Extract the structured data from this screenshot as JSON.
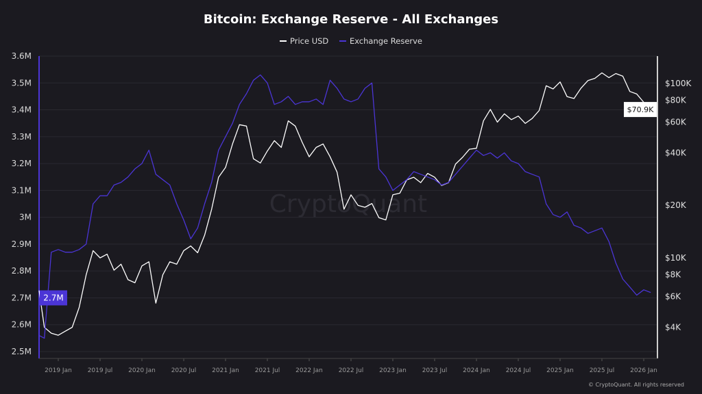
{
  "chart_data": {
    "type": "line",
    "title": "Bitcoin: Exchange Reserve - All Exchanges",
    "legend_position": "top",
    "grid": true,
    "watermark": "CryptoQuant",
    "copyright": "© CryptoQuant. All rights reserved",
    "x_ticks": [
      "2019 Jan",
      "2019 Jul",
      "2020 Jan",
      "2020 Jul",
      "2021 Jan",
      "2021 Jul",
      "2022 Jan",
      "2022 Jul",
      "2023 Jan",
      "2023 Jul",
      "2024 Jan",
      "2024 Jul",
      "2025 Jan",
      "2025 Jul",
      "2026 Jan"
    ],
    "left_axis": {
      "ticks": [
        "3.6M",
        "3.5M",
        "3.4M",
        "3.3M",
        "3.2M",
        "3.1M",
        "3M",
        "2.9M",
        "2.8M",
        "2.7M",
        "2.6M",
        "2.5M"
      ],
      "range_m": [
        2.5,
        3.6
      ],
      "current_label": "2.7M"
    },
    "right_axis": {
      "scale": "log",
      "ticks": [
        "$100K",
        "$80K",
        "$60K",
        "$40K",
        "$20K",
        "$10K",
        "$8K",
        "$6K",
        "$4K"
      ],
      "tick_values": [
        100000,
        80000,
        60000,
        40000,
        20000,
        10000,
        8000,
        6000,
        4000
      ],
      "current_label": "$70.9K"
    },
    "x": [
      "2018-10",
      "2018-11",
      "2018-12",
      "2019-01",
      "2019-02",
      "2019-03",
      "2019-04",
      "2019-05",
      "2019-06",
      "2019-07",
      "2019-08",
      "2019-09",
      "2019-10",
      "2019-11",
      "2019-12",
      "2020-01",
      "2020-02",
      "2020-03",
      "2020-04",
      "2020-05",
      "2020-06",
      "2020-07",
      "2020-08",
      "2020-09",
      "2020-10",
      "2020-11",
      "2020-12",
      "2021-01",
      "2021-02",
      "2021-03",
      "2021-04",
      "2021-05",
      "2021-06",
      "2021-07",
      "2021-08",
      "2021-09",
      "2021-10",
      "2021-11",
      "2021-12",
      "2022-01",
      "2022-02",
      "2022-03",
      "2022-04",
      "2022-05",
      "2022-06",
      "2022-07",
      "2022-08",
      "2022-09",
      "2022-10",
      "2022-11",
      "2022-12",
      "2023-01",
      "2023-02",
      "2023-03",
      "2023-04",
      "2023-05",
      "2023-06",
      "2023-07",
      "2023-08",
      "2023-09",
      "2023-10",
      "2023-11",
      "2023-12",
      "2024-01",
      "2024-02",
      "2024-03",
      "2024-04",
      "2024-05",
      "2024-06",
      "2024-07",
      "2024-08",
      "2024-09",
      "2024-10",
      "2024-11",
      "2024-12",
      "2025-01",
      "2025-02",
      "2025-03",
      "2025-04",
      "2025-05",
      "2025-06",
      "2025-07",
      "2025-08",
      "2025-09",
      "2025-10",
      "2025-11",
      "2025-12",
      "2026-01",
      "2026-02"
    ],
    "series": [
      {
        "name": "Price USD",
        "axis": "right",
        "color": "#ffffff",
        "values": [
          6500,
          4000,
          3700,
          3600,
          3800,
          4000,
          5200,
          8000,
          11000,
          10000,
          10500,
          8500,
          9200,
          7500,
          7200,
          9000,
          9500,
          5500,
          8000,
          9500,
          9200,
          11000,
          11700,
          10700,
          13500,
          19000,
          29000,
          33000,
          45000,
          58000,
          57000,
          37000,
          35000,
          41000,
          47000,
          43000,
          61000,
          57000,
          46000,
          38000,
          43000,
          45000,
          38000,
          31000,
          19000,
          23000,
          20000,
          19500,
          20500,
          17000,
          16500,
          23000,
          23500,
          28000,
          29000,
          27000,
          30500,
          29000,
          26000,
          27000,
          34500,
          37700,
          42000,
          42500,
          61000,
          71000,
          60000,
          67000,
          62000,
          65000,
          59000,
          63000,
          70000,
          97000,
          93000,
          102000,
          84000,
          82000,
          94000,
          104000,
          107000,
          115000,
          108000,
          114000,
          110000,
          90000,
          87000,
          78000,
          70900
        ]
      },
      {
        "name": "Exchange Reserve",
        "axis": "left",
        "color": "#4b35d6",
        "values": [
          2.56,
          2.55,
          2.87,
          2.88,
          2.87,
          2.87,
          2.88,
          2.9,
          3.05,
          3.08,
          3.08,
          3.12,
          3.13,
          3.15,
          3.18,
          3.2,
          3.25,
          3.16,
          3.14,
          3.12,
          3.05,
          2.99,
          2.92,
          2.96,
          3.05,
          3.13,
          3.25,
          3.3,
          3.35,
          3.42,
          3.46,
          3.51,
          3.53,
          3.5,
          3.42,
          3.43,
          3.45,
          3.42,
          3.43,
          3.43,
          3.44,
          3.42,
          3.51,
          3.48,
          3.44,
          3.43,
          3.44,
          3.48,
          3.5,
          3.18,
          3.15,
          3.1,
          3.12,
          3.14,
          3.17,
          3.16,
          3.15,
          3.14,
          3.12,
          3.13,
          3.16,
          3.19,
          3.22,
          3.25,
          3.23,
          3.24,
          3.22,
          3.24,
          3.21,
          3.2,
          3.17,
          3.16,
          3.15,
          3.05,
          3.01,
          3.0,
          3.02,
          2.97,
          2.96,
          2.94,
          2.95,
          2.96,
          2.91,
          2.83,
          2.77,
          2.74,
          2.71,
          2.73,
          2.72
        ]
      }
    ]
  }
}
